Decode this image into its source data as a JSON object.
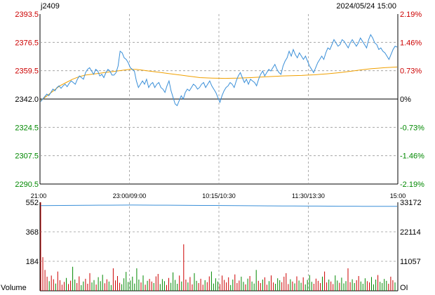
{
  "header": {
    "symbol": "j2409",
    "datetime": "2024/05/24 15:00"
  },
  "colors": {
    "up": "#cc0000",
    "down": "#008800",
    "neutral": "#000000",
    "price_line": "#3a8fd8",
    "avg_line": "#f0a000",
    "oi_line": "#3a8fd8",
    "grid": "#999999"
  },
  "chart_data": [
    {
      "type": "line",
      "title": "",
      "xlabel": "",
      "ylabel": "",
      "base_price": 2342.0,
      "ylim": [
        2290.5,
        2393.5
      ],
      "y_ticks_left": [
        "2393.5",
        "2376.5",
        "2359.5",
        "2342.0",
        "2324.5",
        "2307.5",
        "2290.5"
      ],
      "y_ticks_right": [
        "2.19%",
        "1.46%",
        "0.73%",
        "0%",
        "-0.73%",
        "-1.46%",
        "-2.19%"
      ],
      "x_ticks": [
        "21:00",
        "23:00/09:00",
        "10:15/10:30",
        "11:30/13:30",
        "15:00"
      ],
      "grid": true,
      "series": [
        {
          "key": "price",
          "values": [
            2340.5,
            2342,
            2343.5,
            2345,
            2344,
            2346,
            2348,
            2347,
            2349,
            2350,
            2348.5,
            2350,
            2351,
            2349.5,
            2351.5,
            2353,
            2352,
            2351,
            2354,
            2356,
            2355,
            2354,
            2358,
            2360,
            2361,
            2359,
            2357,
            2360,
            2359,
            2356,
            2357,
            2355,
            2358,
            2360,
            2359,
            2356.5,
            2356.5,
            2358,
            2362,
            2371,
            2370,
            2367,
            2366,
            2364,
            2361,
            2360,
            2359,
            2353,
            2349,
            2351,
            2353,
            2351,
            2354,
            2349,
            2351,
            2352,
            2349,
            2351,
            2352,
            2349,
            2348,
            2346,
            2350,
            2353,
            2347,
            2343,
            2339,
            2338,
            2341,
            2344,
            2342,
            2346,
            2348,
            2347,
            2349,
            2351,
            2350,
            2348,
            2349,
            2351,
            2352,
            2349,
            2351,
            2353,
            2350,
            2348,
            2346,
            2343,
            2340,
            2344,
            2347,
            2349,
            2350,
            2352,
            2351,
            2349,
            2353,
            2356,
            2358,
            2355,
            2352,
            2354,
            2351,
            2354,
            2353,
            2352,
            2350,
            2354,
            2357,
            2359,
            2356,
            2358,
            2360,
            2359,
            2361,
            2363,
            2360,
            2358,
            2357,
            2362,
            2365,
            2367,
            2371,
            2368,
            2372,
            2369,
            2367,
            2370,
            2368,
            2366,
            2368,
            2365,
            2362,
            2360,
            2358,
            2361,
            2364,
            2366,
            2368,
            2366,
            2370,
            2373,
            2372,
            2375,
            2378,
            2376,
            2374,
            2375,
            2378,
            2377,
            2375,
            2373,
            2376,
            2378,
            2376,
            2374,
            2376,
            2379,
            2377,
            2375,
            2373,
            2378,
            2381,
            2379,
            2376,
            2375,
            2372,
            2373,
            2371,
            2370,
            2368,
            2366,
            2369,
            2372,
            2374,
            2373.5
          ],
          "color_key": "price_line"
        },
        {
          "key": "average",
          "values": [
            2341,
            2344,
            2347,
            2350,
            2352,
            2354,
            2355.5,
            2356.5,
            2357,
            2357.5,
            2358,
            2358.5,
            2359,
            2359.5,
            2360,
            2360,
            2359.5,
            2359,
            2358.5,
            2358,
            2357.5,
            2357,
            2356.5,
            2356,
            2355.5,
            2355,
            2354.8,
            2354.7,
            2354.6,
            2354.5,
            2354.6,
            2354.7,
            2354.8,
            2355,
            2355.2,
            2355.4,
            2355.6,
            2355.8,
            2356,
            2356.1,
            2356.2,
            2356.3,
            2356.5,
            2356.7,
            2357,
            2357.3,
            2357.6,
            2358,
            2358.5,
            2359,
            2359.5,
            2360,
            2360.4,
            2360.7,
            2361,
            2361.2,
            2361.4
          ],
          "color_key": "avg_line"
        }
      ]
    },
    {
      "type": "bar",
      "title": "",
      "label": "Volume",
      "label_right": "OI",
      "ylim": [
        0,
        552
      ],
      "y_ticks_left": [
        "552",
        "368",
        "184"
      ],
      "y_ticks_right": [
        "33172",
        "22114",
        "11057"
      ],
      "series": [
        {
          "key": "volume",
          "values": [
            552,
            210,
            130,
            88,
            60,
            95,
            72,
            45,
            120,
            66,
            38,
            55,
            80,
            42,
            63,
            150,
            70,
            48,
            90,
            35,
            58,
            75,
            44,
            110,
            52,
            67,
            39,
            85,
            60,
            100,
            47,
            72,
            58,
            36,
            140,
            65,
            92,
            50,
            41,
            78,
            118,
            55,
            64,
            88,
            45,
            140,
            70,
            52,
            96,
            38,
            62,
            74,
            58,
            48,
            90,
            105,
            42,
            73,
            60,
            36,
            80,
            50,
            115,
            68,
            44,
            95,
            58,
            290,
            70,
            52,
            86,
            40,
            110,
            62,
            48,
            75,
            38,
            66,
            54,
            90,
            120,
            45,
            78,
            58,
            42,
            95,
            68,
            52,
            84,
            36,
            70,
            102,
            48,
            64,
            88,
            56,
            40,
            76,
            92,
            58,
            45,
            130,
            62,
            48,
            70,
            84,
            38,
            60,
            96,
            52,
            44,
            78,
            66,
            54,
            88,
            110,
            42,
            72,
            58,
            46,
            90,
            64,
            50,
            84,
            40,
            68,
            98,
            56,
            44,
            76,
            62,
            48,
            88,
            120,
            52,
            70,
            58,
            42,
            96,
            64,
            50,
            82,
            46,
            60,
            140,
            54,
            72,
            48,
            66,
            92,
            58,
            44,
            78,
            60,
            52,
            86,
            40,
            70,
            98,
            56,
            48,
            74,
            62,
            44,
            88,
            66,
            52
          ],
          "color_keys": [
            "up",
            "down"
          ]
        },
        {
          "key": "oi",
          "values": [
            31900,
            31950,
            31980,
            32020,
            32050,
            32080,
            32100,
            32120,
            32150,
            32130,
            32100,
            32080,
            32050,
            32020,
            32000,
            31980,
            31950,
            31900,
            31870,
            31850,
            31820,
            31800,
            31780,
            31760,
            31740,
            31720,
            31700,
            31690,
            31680,
            31670,
            31660,
            31650
          ],
          "oi_max": 33172,
          "color_key": "oi_line"
        }
      ]
    }
  ]
}
